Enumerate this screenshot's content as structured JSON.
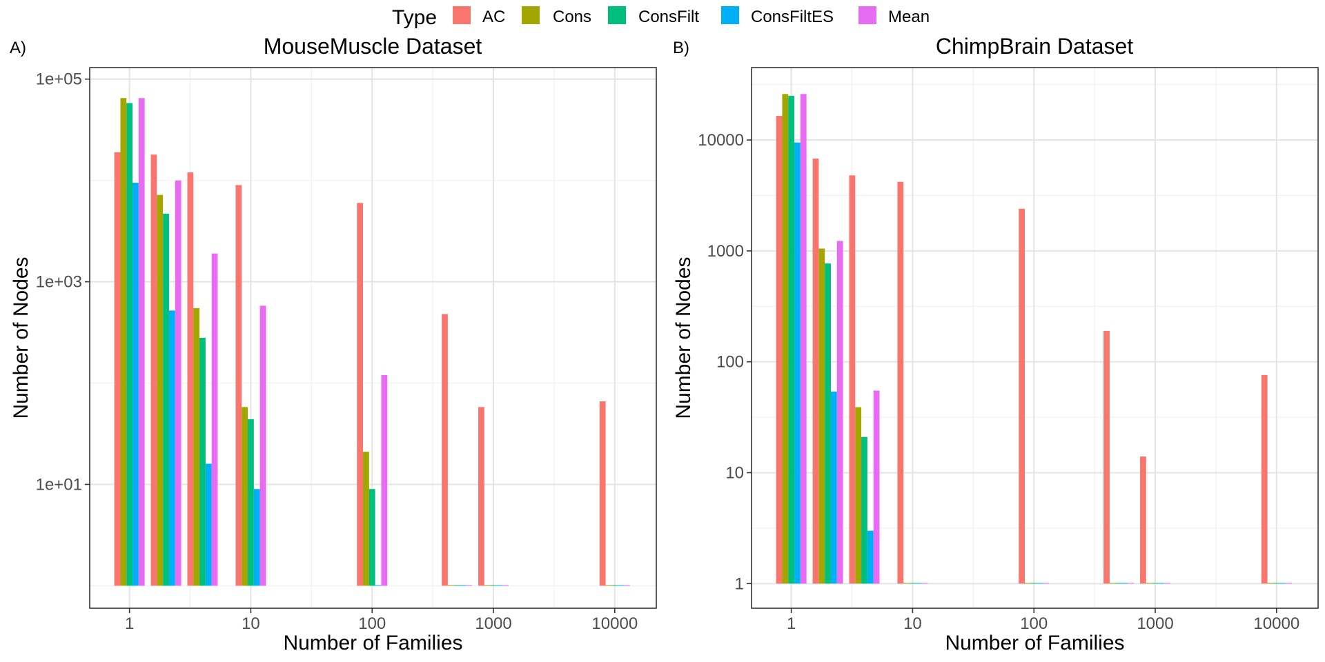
{
  "legend": {
    "title": "Type",
    "position": "top",
    "entries": [
      {
        "name": "AC",
        "color": "#F8766D"
      },
      {
        "name": "Cons",
        "color": "#A3A500"
      },
      {
        "name": "ConsFilt",
        "color": "#00BF7D"
      },
      {
        "name": "ConsFiltES",
        "color": "#00B0F6"
      },
      {
        "name": "Mean",
        "color": "#E76BF3"
      }
    ]
  },
  "chart_data": [
    {
      "type": "bar",
      "tag": "A)",
      "title": "MouseMuscle Dataset",
      "xlabel": "Number of Families",
      "ylabel": "Number of Nodes",
      "x_scale": "log10",
      "y_scale": "log10",
      "xlim": [
        0.47,
        22000
      ],
      "ylim": [
        0.6,
        130000
      ],
      "x_ticks": [
        1,
        10,
        100,
        1000,
        10000
      ],
      "x_tick_labels": [
        "1",
        "10",
        "100",
        "1000",
        "10000"
      ],
      "y_ticks": [
        10,
        1000,
        100000
      ],
      "y_tick_labels": [
        "1e+01",
        "1e+03",
        "1e+05"
      ],
      "grid": true,
      "series": [
        {
          "name": "AC",
          "points": [
            [
              1,
              19000
            ],
            [
              2,
              18000
            ],
            [
              4,
              12000
            ],
            [
              10,
              9000
            ],
            [
              100,
              6000
            ],
            [
              500,
              480
            ],
            [
              1000,
              58
            ],
            [
              10000,
              66
            ]
          ]
        },
        {
          "name": "Cons",
          "points": [
            [
              1,
              65000
            ],
            [
              2,
              7200
            ],
            [
              4,
              550
            ],
            [
              10,
              58
            ],
            [
              100,
              21
            ],
            [
              500,
              1
            ],
            [
              1000,
              1
            ],
            [
              10000,
              1
            ]
          ]
        },
        {
          "name": "ConsFilt",
          "points": [
            [
              1,
              58000
            ],
            [
              2,
              4700
            ],
            [
              4,
              280
            ],
            [
              10,
              44
            ],
            [
              100,
              9
            ],
            [
              500,
              1
            ],
            [
              1000,
              1
            ],
            [
              10000,
              1
            ]
          ]
        },
        {
          "name": "ConsFiltES",
          "points": [
            [
              1,
              9500
            ],
            [
              2,
              520
            ],
            [
              4,
              16
            ],
            [
              10,
              9
            ],
            [
              100,
              1
            ],
            [
              500,
              1
            ],
            [
              1000,
              1
            ],
            [
              10000,
              1
            ]
          ]
        },
        {
          "name": "Mean",
          "points": [
            [
              1,
              65000
            ],
            [
              2,
              10000
            ],
            [
              4,
              1900
            ],
            [
              10,
              580
            ],
            [
              100,
              120
            ],
            [
              500,
              1
            ],
            [
              1000,
              1
            ],
            [
              10000,
              1
            ]
          ]
        }
      ]
    },
    {
      "type": "bar",
      "tag": "B)",
      "title": "ChimpBrain Dataset",
      "xlabel": "Number of Families",
      "ylabel": "Number of Nodes",
      "x_scale": "log10",
      "y_scale": "log10",
      "xlim": [
        0.47,
        22000
      ],
      "ylim": [
        0.6,
        45000
      ],
      "x_ticks": [
        1,
        10,
        100,
        1000,
        10000
      ],
      "x_tick_labels": [
        "1",
        "10",
        "100",
        "1000",
        "10000"
      ],
      "y_ticks": [
        1,
        10,
        100,
        1000,
        10000
      ],
      "y_tick_labels": [
        "1",
        "10",
        "100",
        "1000",
        "10000"
      ],
      "grid": true,
      "series": [
        {
          "name": "AC",
          "points": [
            [
              1,
              16500
            ],
            [
              2,
              6800
            ],
            [
              4,
              4800
            ],
            [
              10,
              4200
            ],
            [
              100,
              2400
            ],
            [
              500,
              190
            ],
            [
              1000,
              14
            ],
            [
              10000,
              76
            ]
          ]
        },
        {
          "name": "Cons",
          "points": [
            [
              1,
              26000
            ],
            [
              2,
              1050
            ],
            [
              4,
              39
            ],
            [
              10,
              1
            ],
            [
              100,
              1
            ],
            [
              500,
              1
            ],
            [
              1000,
              1
            ],
            [
              10000,
              1
            ]
          ]
        },
        {
          "name": "ConsFilt",
          "points": [
            [
              1,
              25000
            ],
            [
              2,
              770
            ],
            [
              4,
              21
            ],
            [
              10,
              1
            ],
            [
              100,
              1
            ],
            [
              500,
              1
            ],
            [
              1000,
              1
            ],
            [
              10000,
              1
            ]
          ]
        },
        {
          "name": "ConsFiltES",
          "points": [
            [
              1,
              9500
            ],
            [
              2,
              54
            ],
            [
              4,
              3
            ],
            [
              10,
              1
            ],
            [
              100,
              1
            ],
            [
              500,
              1
            ],
            [
              1000,
              1
            ],
            [
              10000,
              1
            ]
          ]
        },
        {
          "name": "Mean",
          "points": [
            [
              1,
              26000
            ],
            [
              2,
              1230
            ],
            [
              4,
              55
            ],
            [
              10,
              1
            ],
            [
              100,
              1
            ],
            [
              500,
              1
            ],
            [
              1000,
              1
            ],
            [
              10000,
              1
            ]
          ]
        }
      ]
    }
  ]
}
